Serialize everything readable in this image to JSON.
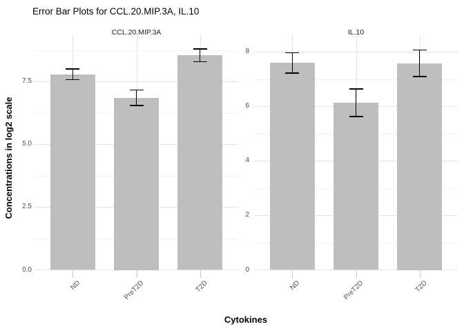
{
  "title": "Error Bar Plots for CCL.20.MIP.3A, IL.10",
  "axes": {
    "x_title": "Cytokines",
    "y_title": "Concentrations in log2 scale"
  },
  "chart_data": {
    "type": "bar",
    "subtype": "faceted-bar-with-error-bars",
    "categories": [
      "ND",
      "PreT2D",
      "T2D"
    ],
    "facets": [
      {
        "label": "CCL.20.MIP.3A",
        "values": [
          7.79,
          6.86,
          8.55
        ],
        "error_low": [
          7.56,
          6.53,
          8.27
        ],
        "error_high": [
          8.02,
          7.19,
          8.82
        ],
        "ylim": [
          0,
          9.37
        ],
        "yticks": [
          {
            "v": 0,
            "label": "0.0"
          },
          {
            "v": 2.5,
            "label": "2.5"
          },
          {
            "v": 5,
            "label": "5.0"
          },
          {
            "v": 7.5,
            "label": "7.5"
          }
        ],
        "yminor": [
          1.25,
          3.75,
          6.25,
          8.75
        ]
      },
      {
        "label": "IL.10",
        "values": [
          7.59,
          6.13,
          7.58
        ],
        "error_low": [
          7.2,
          5.6,
          7.07
        ],
        "error_high": [
          7.98,
          6.66,
          8.08
        ],
        "ylim": [
          0,
          8.63
        ],
        "yticks": [
          {
            "v": 0,
            "label": "0"
          },
          {
            "v": 2,
            "label": "2"
          },
          {
            "v": 4,
            "label": "4"
          },
          {
            "v": 6,
            "label": "6"
          },
          {
            "v": 8,
            "label": "8"
          }
        ],
        "yminor": [
          1,
          3,
          5,
          7
        ]
      }
    ],
    "grid": true,
    "legend": "none",
    "style": {
      "bar_color": "#bebebe",
      "error_color": "#000000",
      "grid_major": "#e5e5e5",
      "grid_minor": "#f2f2f2",
      "tick_text": "#4d4d4d",
      "strip_text": "#1a1a1a",
      "axis_tick": "#c9c9c9"
    }
  }
}
